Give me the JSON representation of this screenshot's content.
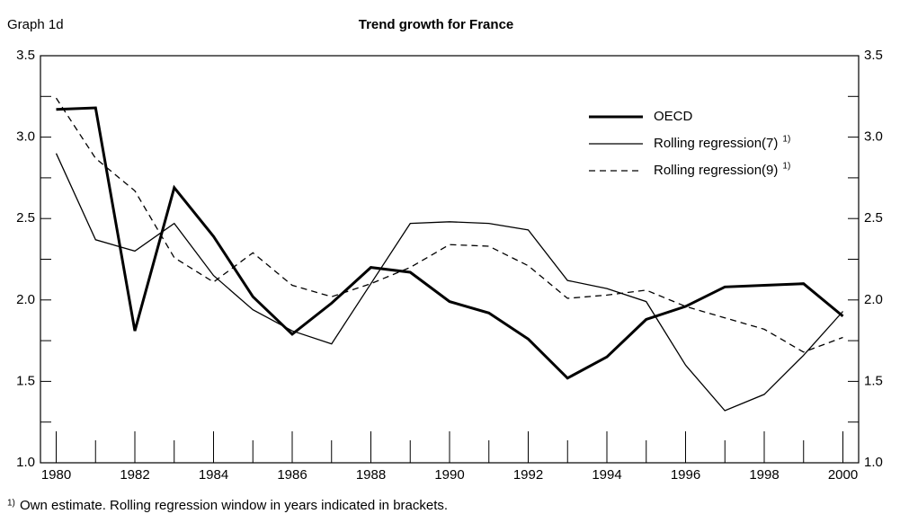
{
  "chart_data": {
    "type": "line",
    "label": "Graph 1d",
    "title": "Trend growth for France",
    "x": [
      1980,
      1981,
      1982,
      1983,
      1984,
      1985,
      1986,
      1987,
      1988,
      1989,
      1990,
      1991,
      1992,
      1993,
      1994,
      1995,
      1996,
      1997,
      1998,
      1999,
      2000
    ],
    "series": [
      {
        "name": "OECD",
        "note": "1)",
        "color": "#000000",
        "width": 3,
        "style": "solid",
        "values": [
          3.17,
          3.18,
          1.81,
          2.69,
          2.39,
          2.02,
          1.79,
          1.98,
          2.2,
          2.17,
          1.99,
          1.92,
          1.76,
          1.52,
          1.65,
          1.88,
          1.96,
          2.08,
          2.09,
          2.1,
          1.9
        ]
      },
      {
        "name": "Rolling regression(7)",
        "note": "1)",
        "color": "#000000",
        "width": 1.3,
        "style": "solid",
        "values": [
          2.9,
          2.37,
          2.3,
          2.47,
          2.15,
          1.94,
          1.81,
          1.73,
          2.1,
          2.47,
          2.48,
          2.47,
          2.43,
          2.12,
          2.07,
          1.99,
          1.6,
          1.32,
          1.42,
          1.66,
          1.93
        ]
      },
      {
        "name": "Rolling regression(9)",
        "note": "1)",
        "color": "#000000",
        "width": 1.3,
        "style": "dashed",
        "values": [
          3.24,
          2.87,
          2.67,
          2.26,
          2.11,
          2.29,
          2.09,
          2.02,
          2.1,
          2.2,
          2.34,
          2.33,
          2.21,
          2.01,
          2.03,
          2.06,
          1.96,
          1.89,
          1.82,
          1.68,
          1.77
        ]
      }
    ],
    "xlim": [
      1979.6,
      2000.4
    ],
    "xticks": [
      1980,
      1982,
      1984,
      1986,
      1988,
      1990,
      1992,
      1994,
      1996,
      1998,
      2000
    ],
    "xminorticks": [
      1981,
      1983,
      1985,
      1987,
      1989,
      1991,
      1993,
      1995,
      1997,
      1999
    ],
    "ylim": [
      1,
      3.5
    ],
    "yticks": [
      {
        "value": 1,
        "label": "1.0"
      },
      {
        "value": 1.5,
        "label": "1.5"
      },
      {
        "value": 2,
        "label": "2.0"
      },
      {
        "value": 2.5,
        "label": "2.5"
      },
      {
        "value": 3,
        "label": "3.0"
      },
      {
        "value": 3.5,
        "label": "3.5"
      }
    ],
    "yminorticks": [
      1.25,
      1.75,
      2.25,
      2.75,
      3.25
    ],
    "y2lim": [
      1,
      3.5
    ],
    "y2ticks": [
      {
        "value": 1,
        "label": "1.0"
      },
      {
        "value": 1.5,
        "label": "1.5"
      },
      {
        "value": 2,
        "label": "2.0"
      },
      {
        "value": 2.5,
        "label": "2.5"
      },
      {
        "value": 3,
        "label": "3.0"
      },
      {
        "value": 3.5,
        "label": "3.5"
      }
    ],
    "legend": "upper right",
    "footnote": {
      "marker": "1)",
      "text": "Own estimate. Rolling regression window in years indicated in brackets."
    }
  }
}
